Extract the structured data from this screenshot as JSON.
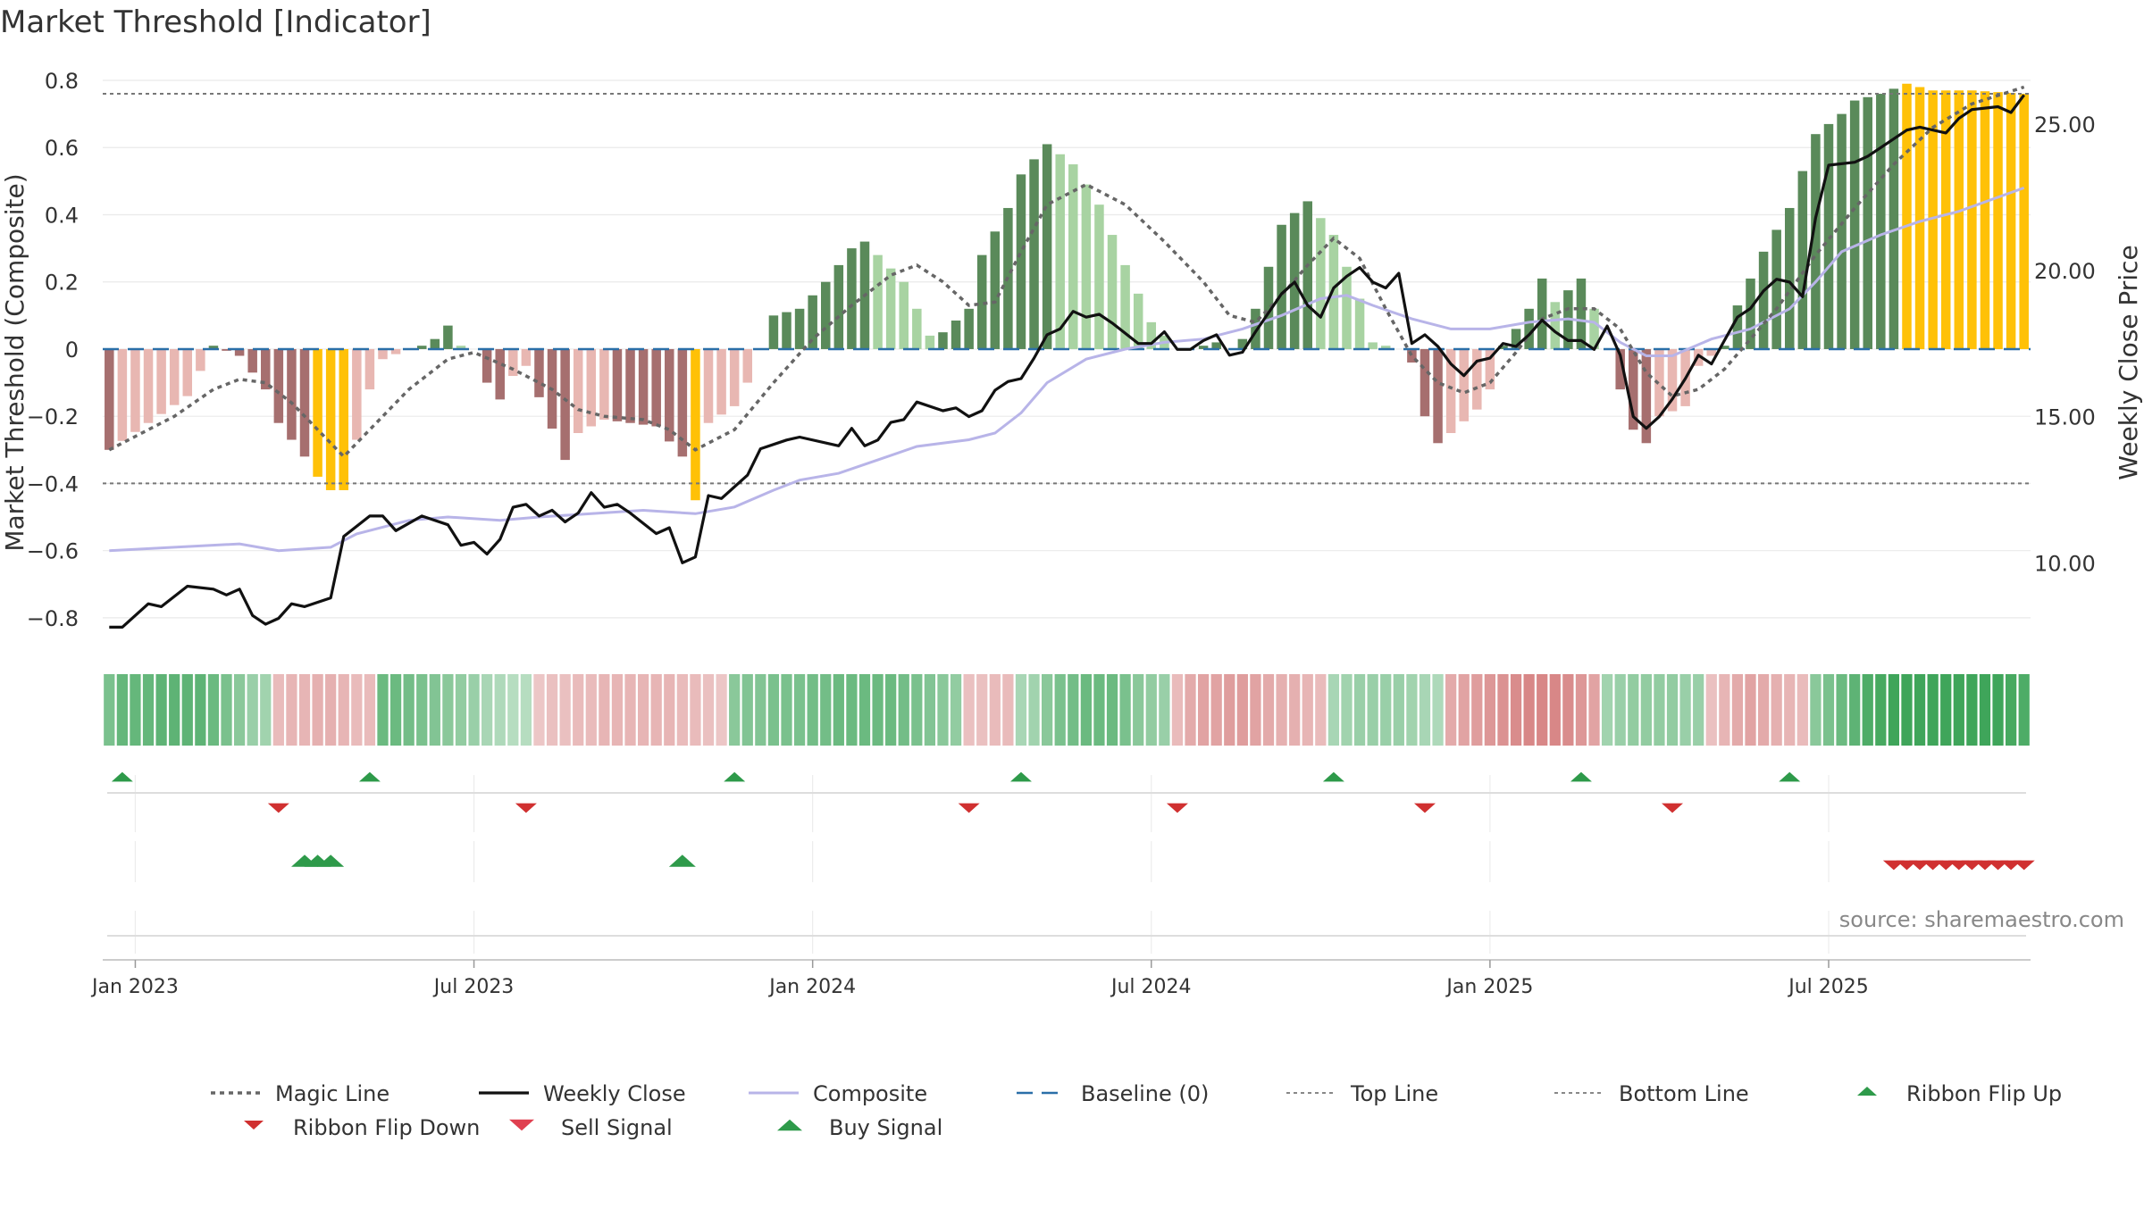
{
  "title": "Market Threshold [Indicator]",
  "source": "source: sharemaestro.com",
  "colors": {
    "bar_strong_up": "#5a8a5a",
    "bar_weak_up": "#a8d3a2",
    "bar_strong_down": "#a66f6f",
    "bar_weak_down": "#e8b7b2",
    "bar_extreme": "#ffc107",
    "close": "#111111",
    "composite": "#b8b4e8",
    "magic": "#666666",
    "baseline": "#2a6fa8",
    "buy": "#2e9a4a",
    "sell": "#d03030"
  },
  "chart_data": {
    "type": "bar",
    "weeks": 148,
    "x_tick_labels": [
      "Jan 2023",
      "Jul 2023",
      "Jan 2024",
      "Jul 2024",
      "Jan 2025",
      "Jul 2025"
    ],
    "x_tick_weeks": [
      2,
      28,
      54,
      80,
      106,
      132
    ],
    "left_axis": {
      "label": "Market Threshold (Composite)",
      "ylim": [
        -0.88,
        0.8
      ],
      "ticks": [
        0.8,
        0.6,
        0.4,
        0.2,
        0,
        -0.2,
        -0.4,
        -0.6,
        -0.8
      ],
      "tick_labels": [
        "0.8",
        "0.6",
        "0.4",
        "0.2",
        "0",
        "−0.2",
        "−0.4",
        "−0.6",
        "−0.8"
      ]
    },
    "right_axis": {
      "label": "Weekly Close Price",
      "ylim": [
        7.2,
        26.5
      ],
      "ticks": [
        25,
        20,
        15,
        10
      ],
      "tick_labels": [
        "25.00",
        "20.00",
        "15.00",
        "10.00"
      ]
    },
    "top_line": 0.76,
    "bottom_line": -0.4,
    "bar_segments": [
      [
        0,
        -0.3
      ],
      [
        3,
        -0.22
      ],
      [
        6,
        -0.14
      ],
      [
        8,
        0.01
      ],
      [
        10,
        -0.02
      ],
      [
        12,
        -0.12
      ],
      [
        13,
        -0.22
      ],
      [
        15,
        -0.32
      ],
      [
        16,
        -0.38
      ],
      [
        17,
        -0.42
      ],
      [
        18,
        -0.42
      ],
      [
        20,
        -0.12
      ],
      [
        21,
        -0.03
      ],
      [
        23,
        0.0
      ],
      [
        24,
        0.01
      ],
      [
        25,
        0.03
      ],
      [
        26,
        0.07
      ],
      [
        27,
        0.01
      ],
      [
        28,
        0.0
      ],
      [
        29,
        -0.1
      ],
      [
        30,
        -0.15
      ],
      [
        31,
        -0.08
      ],
      [
        32,
        -0.05
      ],
      [
        35,
        -0.33
      ],
      [
        36,
        -0.25
      ],
      [
        38,
        -0.21
      ],
      [
        42,
        -0.23
      ],
      [
        44,
        -0.32
      ],
      [
        45,
        -0.45
      ],
      [
        46,
        -0.22
      ],
      [
        48,
        -0.17
      ],
      [
        49,
        -0.1
      ],
      [
        50,
        0.0
      ],
      [
        51,
        0.1
      ],
      [
        53,
        0.12
      ],
      [
        55,
        0.2
      ],
      [
        57,
        0.3
      ],
      [
        58,
        0.32
      ],
      [
        59,
        0.28
      ],
      [
        61,
        0.2
      ],
      [
        63,
        0.04
      ],
      [
        64,
        0.05
      ],
      [
        66,
        0.12
      ],
      [
        67,
        0.28
      ],
      [
        69,
        0.42
      ],
      [
        70,
        0.52
      ],
      [
        72,
        0.61
      ],
      [
        74,
        0.55
      ],
      [
        76,
        0.43
      ],
      [
        78,
        0.25
      ],
      [
        80,
        0.08
      ],
      [
        82,
        0.0
      ],
      [
        83,
        0.0
      ],
      [
        85,
        0.02
      ],
      [
        86,
        0.0
      ],
      [
        87,
        0.03
      ],
      [
        88,
        0.12
      ],
      [
        90,
        0.37
      ],
      [
        92,
        0.44
      ],
      [
        94,
        0.34
      ],
      [
        96,
        0.15
      ],
      [
        97,
        0.02
      ],
      [
        99,
        0.0
      ],
      [
        100,
        -0.04
      ],
      [
        101,
        -0.2
      ],
      [
        102,
        -0.28
      ],
      [
        103,
        -0.25
      ],
      [
        105,
        -0.18
      ],
      [
        106,
        -0.12
      ],
      [
        107,
        0.01
      ],
      [
        108,
        0.06
      ],
      [
        109,
        0.12
      ],
      [
        110,
        0.21
      ],
      [
        111,
        0.14
      ],
      [
        113,
        0.21
      ],
      [
        114,
        0.12
      ],
      [
        115,
        0.0
      ],
      [
        116,
        -0.12
      ],
      [
        117,
        -0.24
      ],
      [
        118,
        -0.28
      ],
      [
        119,
        -0.2
      ],
      [
        121,
        -0.17
      ],
      [
        122,
        -0.05
      ],
      [
        124,
        0.01
      ],
      [
        125,
        0.13
      ],
      [
        127,
        0.29
      ],
      [
        129,
        0.42
      ],
      [
        131,
        0.64
      ],
      [
        133,
        0.7
      ],
      [
        134,
        0.74
      ],
      [
        136,
        0.76
      ],
      [
        138,
        0.79
      ],
      [
        140,
        0.77
      ],
      [
        143,
        0.77
      ],
      [
        147,
        0.76
      ]
    ],
    "bar_extreme_weeks": [
      16,
      17,
      18,
      45,
      138,
      139,
      140,
      141,
      142,
      143,
      144,
      145,
      146,
      147
    ],
    "magic_line": [
      [
        0,
        -0.3
      ],
      [
        5,
        -0.2
      ],
      [
        8,
        -0.12
      ],
      [
        10,
        -0.09
      ],
      [
        12,
        -0.1
      ],
      [
        14,
        -0.16
      ],
      [
        16,
        -0.24
      ],
      [
        18,
        -0.32
      ],
      [
        20,
        -0.24
      ],
      [
        23,
        -0.12
      ],
      [
        26,
        -0.03
      ],
      [
        28,
        -0.01
      ],
      [
        31,
        -0.06
      ],
      [
        34,
        -0.12
      ],
      [
        36,
        -0.18
      ],
      [
        38,
        -0.2
      ],
      [
        41,
        -0.21
      ],
      [
        43,
        -0.24
      ],
      [
        45,
        -0.3
      ],
      [
        48,
        -0.24
      ],
      [
        51,
        -0.1
      ],
      [
        54,
        0.03
      ],
      [
        57,
        0.13
      ],
      [
        60,
        0.22
      ],
      [
        62,
        0.25
      ],
      [
        64,
        0.2
      ],
      [
        66,
        0.13
      ],
      [
        68,
        0.14
      ],
      [
        70,
        0.29
      ],
      [
        72,
        0.43
      ],
      [
        75,
        0.49
      ],
      [
        78,
        0.43
      ],
      [
        81,
        0.32
      ],
      [
        84,
        0.2
      ],
      [
        86,
        0.1
      ],
      [
        88,
        0.08
      ],
      [
        90,
        0.16
      ],
      [
        92,
        0.25
      ],
      [
        94,
        0.33
      ],
      [
        96,
        0.27
      ],
      [
        98,
        0.12
      ],
      [
        100,
        -0.02
      ],
      [
        102,
        -0.1
      ],
      [
        104,
        -0.13
      ],
      [
        106,
        -0.1
      ],
      [
        108,
        -0.01
      ],
      [
        110,
        0.09
      ],
      [
        112,
        0.12
      ],
      [
        114,
        0.12
      ],
      [
        116,
        0.06
      ],
      [
        118,
        -0.07
      ],
      [
        120,
        -0.14
      ],
      [
        122,
        -0.12
      ],
      [
        124,
        -0.06
      ],
      [
        126,
        0.03
      ],
      [
        128,
        0.12
      ],
      [
        131,
        0.28
      ],
      [
        134,
        0.42
      ],
      [
        137,
        0.55
      ],
      [
        140,
        0.66
      ],
      [
        143,
        0.73
      ],
      [
        147,
        0.78
      ]
    ],
    "weekly_close": [
      [
        0,
        7.8
      ],
      [
        1,
        7.8
      ],
      [
        3,
        8.6
      ],
      [
        4,
        8.5
      ],
      [
        6,
        9.2
      ],
      [
        8,
        9.1
      ],
      [
        9,
        8.9
      ],
      [
        10,
        9.1
      ],
      [
        11,
        8.2
      ],
      [
        12,
        7.9
      ],
      [
        13,
        8.1
      ],
      [
        14,
        8.6
      ],
      [
        15,
        8.5
      ],
      [
        17,
        8.8
      ],
      [
        18,
        10.9
      ],
      [
        20,
        11.6
      ],
      [
        21,
        11.6
      ],
      [
        22,
        11.1
      ],
      [
        24,
        11.6
      ],
      [
        26,
        11.3
      ],
      [
        27,
        10.6
      ],
      [
        28,
        10.7
      ],
      [
        29,
        10.3
      ],
      [
        30,
        10.8
      ],
      [
        31,
        11.9
      ],
      [
        32,
        12.0
      ],
      [
        33,
        11.6
      ],
      [
        34,
        11.8
      ],
      [
        35,
        11.4
      ],
      [
        36,
        11.7
      ],
      [
        37,
        12.4
      ],
      [
        38,
        11.9
      ],
      [
        39,
        12.0
      ],
      [
        40,
        11.7
      ],
      [
        42,
        11.0
      ],
      [
        43,
        11.2
      ],
      [
        44,
        10.0
      ],
      [
        45,
        10.2
      ],
      [
        46,
        12.3
      ],
      [
        47,
        12.2
      ],
      [
        49,
        13.0
      ],
      [
        50,
        13.9
      ],
      [
        52,
        14.2
      ],
      [
        53,
        14.3
      ],
      [
        56,
        14.0
      ],
      [
        57,
        14.6
      ],
      [
        58,
        14.0
      ],
      [
        59,
        14.2
      ],
      [
        60,
        14.8
      ],
      [
        61,
        14.9
      ],
      [
        62,
        15.5
      ],
      [
        64,
        15.2
      ],
      [
        65,
        15.3
      ],
      [
        66,
        15.0
      ],
      [
        67,
        15.2
      ],
      [
        68,
        15.9
      ],
      [
        69,
        16.2
      ],
      [
        70,
        16.3
      ],
      [
        71,
        17.0
      ],
      [
        72,
        17.8
      ],
      [
        73,
        18.0
      ],
      [
        74,
        18.6
      ],
      [
        75,
        18.4
      ],
      [
        76,
        18.5
      ],
      [
        77,
        18.2
      ],
      [
        79,
        17.5
      ],
      [
        80,
        17.5
      ],
      [
        81,
        17.9
      ],
      [
        82,
        17.3
      ],
      [
        83,
        17.3
      ],
      [
        84,
        17.6
      ],
      [
        85,
        17.8
      ],
      [
        86,
        17.1
      ],
      [
        87,
        17.2
      ],
      [
        88,
        17.9
      ],
      [
        90,
        19.2
      ],
      [
        91,
        19.6
      ],
      [
        92,
        18.8
      ],
      [
        93,
        18.4
      ],
      [
        94,
        19.4
      ],
      [
        95,
        19.8
      ],
      [
        96,
        20.1
      ],
      [
        97,
        19.6
      ],
      [
        98,
        19.4
      ],
      [
        99,
        19.9
      ],
      [
        100,
        17.5
      ],
      [
        101,
        17.8
      ],
      [
        102,
        17.4
      ],
      [
        103,
        16.8
      ],
      [
        104,
        16.4
      ],
      [
        105,
        16.9
      ],
      [
        106,
        17.0
      ],
      [
        107,
        17.5
      ],
      [
        108,
        17.4
      ],
      [
        109,
        17.8
      ],
      [
        110,
        18.3
      ],
      [
        111,
        17.9
      ],
      [
        112,
        17.6
      ],
      [
        113,
        17.6
      ],
      [
        114,
        17.3
      ],
      [
        115,
        18.1
      ],
      [
        116,
        17.1
      ],
      [
        117,
        15.0
      ],
      [
        118,
        14.6
      ],
      [
        119,
        15.0
      ],
      [
        120,
        15.6
      ],
      [
        121,
        16.3
      ],
      [
        122,
        17.1
      ],
      [
        123,
        16.8
      ],
      [
        124,
        17.6
      ],
      [
        125,
        18.4
      ],
      [
        126,
        18.7
      ],
      [
        127,
        19.3
      ],
      [
        128,
        19.7
      ],
      [
        129,
        19.6
      ],
      [
        130,
        19.1
      ],
      [
        131,
        21.8
      ],
      [
        132,
        23.6
      ],
      [
        134,
        23.7
      ],
      [
        135,
        23.9
      ],
      [
        136,
        24.2
      ],
      [
        138,
        24.8
      ],
      [
        139,
        24.9
      ],
      [
        141,
        24.7
      ],
      [
        142,
        25.2
      ],
      [
        143,
        25.5
      ],
      [
        145,
        25.6
      ],
      [
        146,
        25.4
      ],
      [
        147,
        26.0
      ]
    ],
    "composite": [
      [
        0,
        -0.6
      ],
      [
        5,
        -0.59
      ],
      [
        10,
        -0.58
      ],
      [
        13,
        -0.6
      ],
      [
        17,
        -0.59
      ],
      [
        19,
        -0.55
      ],
      [
        23,
        -0.51
      ],
      [
        26,
        -0.5
      ],
      [
        30,
        -0.51
      ],
      [
        33,
        -0.5
      ],
      [
        37,
        -0.49
      ],
      [
        41,
        -0.48
      ],
      [
        45,
        -0.49
      ],
      [
        48,
        -0.47
      ],
      [
        51,
        -0.42
      ],
      [
        53,
        -0.39
      ],
      [
        56,
        -0.37
      ],
      [
        59,
        -0.33
      ],
      [
        62,
        -0.29
      ],
      [
        66,
        -0.27
      ],
      [
        68,
        -0.25
      ],
      [
        70,
        -0.19
      ],
      [
        72,
        -0.1
      ],
      [
        75,
        -0.03
      ],
      [
        78,
        0.0
      ],
      [
        81,
        0.02
      ],
      [
        84,
        0.03
      ],
      [
        87,
        0.06
      ],
      [
        90,
        0.1
      ],
      [
        93,
        0.15
      ],
      [
        95,
        0.16
      ],
      [
        97,
        0.13
      ],
      [
        100,
        0.09
      ],
      [
        103,
        0.06
      ],
      [
        106,
        0.06
      ],
      [
        109,
        0.08
      ],
      [
        112,
        0.09
      ],
      [
        114,
        0.08
      ],
      [
        116,
        0.02
      ],
      [
        118,
        -0.02
      ],
      [
        120,
        -0.02
      ],
      [
        123,
        0.03
      ],
      [
        126,
        0.06
      ],
      [
        129,
        0.12
      ],
      [
        131,
        0.2
      ],
      [
        133,
        0.29
      ],
      [
        136,
        0.34
      ],
      [
        139,
        0.38
      ],
      [
        142,
        0.41
      ],
      [
        147,
        0.48
      ]
    ],
    "ribbon": [
      0.6,
      0.75,
      0.75,
      0.75,
      0.8,
      0.8,
      0.8,
      0.8,
      0.7,
      0.6,
      0.5,
      0.4,
      0.35,
      -0.3,
      -0.35,
      -0.35,
      -0.4,
      -0.4,
      -0.35,
      -0.3,
      -0.3,
      0.7,
      0.7,
      0.65,
      0.6,
      0.55,
      0.5,
      0.45,
      0.4,
      0.3,
      0.25,
      0.2,
      0.2,
      -0.2,
      -0.25,
      -0.25,
      -0.3,
      -0.3,
      -0.35,
      -0.35,
      -0.35,
      -0.35,
      -0.35,
      -0.35,
      -0.3,
      -0.3,
      -0.25,
      -0.2,
      0.5,
      0.55,
      0.55,
      0.6,
      0.6,
      0.6,
      0.65,
      0.65,
      0.7,
      0.7,
      0.7,
      0.7,
      0.7,
      0.65,
      0.6,
      0.55,
      0.5,
      0.45,
      -0.25,
      -0.25,
      -0.3,
      -0.3,
      0.3,
      0.35,
      0.5,
      0.6,
      0.65,
      0.7,
      0.7,
      0.7,
      0.6,
      0.5,
      0.45,
      0.4,
      -0.3,
      -0.45,
      -0.5,
      -0.5,
      -0.55,
      -0.55,
      -0.5,
      -0.45,
      -0.4,
      -0.4,
      -0.35,
      -0.3,
      0.3,
      0.35,
      0.4,
      0.4,
      0.4,
      0.4,
      0.35,
      0.3,
      0.25,
      -0.45,
      -0.5,
      -0.55,
      -0.6,
      -0.65,
      -0.7,
      -0.75,
      -0.75,
      -0.75,
      -0.7,
      -0.6,
      -0.5,
      0.35,
      0.4,
      0.45,
      0.45,
      0.45,
      0.45,
      0.4,
      0.4,
      -0.25,
      -0.35,
      -0.45,
      -0.5,
      -0.45,
      -0.4,
      -0.35,
      -0.3,
      0.5,
      0.6,
      0.7,
      0.8,
      0.9,
      0.95,
      1.0,
      1.0,
      1.0,
      1.0,
      1.0,
      1.0,
      1.0,
      1.0,
      1.0,
      0.95,
      0.9
    ],
    "ribbon_flip_up": [
      1,
      20,
      48,
      70,
      94,
      113,
      129
    ],
    "ribbon_flip_down": [
      13,
      32,
      66,
      82,
      101,
      120
    ],
    "buy_signal": [
      15,
      16,
      17,
      44
    ],
    "sell_signal": [
      137,
      138,
      139,
      140,
      141,
      142,
      143,
      144,
      145,
      146,
      147
    ],
    "legend": [
      {
        "label": "Magic Line",
        "symbol": "dotted-line"
      },
      {
        "label": "Weekly Close",
        "symbol": "solid-line"
      },
      {
        "label": "Composite",
        "symbol": "composite-line"
      },
      {
        "label": "Baseline (0)",
        "symbol": "dashed-line"
      },
      {
        "label": "Top Line",
        "symbol": "fine-dotted-line"
      },
      {
        "label": "Bottom Line",
        "symbol": "fine-dotted-line"
      },
      {
        "label": "Ribbon Flip Up",
        "symbol": "up-triangle"
      },
      {
        "label": "Ribbon Flip Down",
        "symbol": "down-triangle"
      },
      {
        "label": "Sell Signal",
        "symbol": "sell-triangle"
      },
      {
        "label": "Buy Signal",
        "symbol": "buy-triangle"
      }
    ]
  }
}
